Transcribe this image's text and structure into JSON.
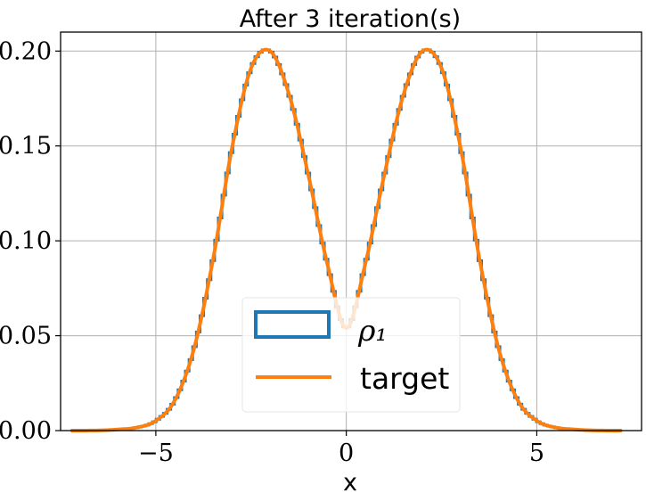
{
  "chart_data": {
    "type": "line",
    "title": "After 3 iteration(s)",
    "xlabel": "x",
    "ylabel": "",
    "xlim": [
      -7.5,
      7.75
    ],
    "ylim": [
      0.0,
      0.21
    ],
    "xticks": [
      -5,
      0,
      5
    ],
    "xtick_labels": [
      "−5",
      "0",
      "5"
    ],
    "yticks": [
      0.0,
      0.05,
      0.1,
      0.15,
      0.2
    ],
    "ytick_labels": [
      "0.00",
      "0.05",
      "0.10",
      "0.15",
      "0.20"
    ],
    "grid": true,
    "legend": {
      "position": "lower-center",
      "entries": [
        "ρ₁",
        "target"
      ]
    },
    "series": [
      {
        "name": "ρ₁",
        "style": "step histogram",
        "color": "#1f77b4",
        "x_range": [
          -7.2,
          7.2
        ],
        "x": [
          -7.2,
          -6.5,
          -6.0,
          -5.5,
          -5.0,
          -4.5,
          -4.0,
          -3.5,
          -3.0,
          -2.5,
          -2.0,
          -1.5,
          -1.0,
          -0.5,
          0.0,
          0.5,
          1.0,
          1.5,
          2.0,
          2.5,
          3.0,
          3.5,
          4.0,
          4.5,
          5.0,
          5.5,
          6.0,
          6.5,
          7.2
        ],
        "y": [
          0.0,
          0.0001,
          0.0006,
          0.0016,
          0.0052,
          0.016,
          0.043,
          0.09,
          0.149,
          0.191,
          0.2,
          0.177,
          0.135,
          0.088,
          0.054,
          0.088,
          0.135,
          0.177,
          0.2,
          0.191,
          0.149,
          0.09,
          0.043,
          0.016,
          0.0052,
          0.0016,
          0.0006,
          0.0001,
          0.0
        ]
      },
      {
        "name": "target",
        "style": "line",
        "color": "#ff7f0e",
        "x": [
          -7.2,
          -6.5,
          -6.0,
          -5.5,
          -5.0,
          -4.5,
          -4.0,
          -3.5,
          -3.0,
          -2.5,
          -2.0,
          -1.5,
          -1.0,
          -0.5,
          0.0,
          0.5,
          1.0,
          1.5,
          2.0,
          2.5,
          3.0,
          3.5,
          4.0,
          4.5,
          5.0,
          5.5,
          6.0,
          6.5,
          7.2
        ],
        "y": [
          0.0,
          0.0001,
          0.0006,
          0.0016,
          0.0052,
          0.016,
          0.043,
          0.09,
          0.149,
          0.191,
          0.2,
          0.177,
          0.135,
          0.088,
          0.054,
          0.088,
          0.135,
          0.177,
          0.2,
          0.191,
          0.149,
          0.09,
          0.043,
          0.016,
          0.0052,
          0.0016,
          0.0006,
          0.0001,
          0.0
        ]
      }
    ]
  }
}
